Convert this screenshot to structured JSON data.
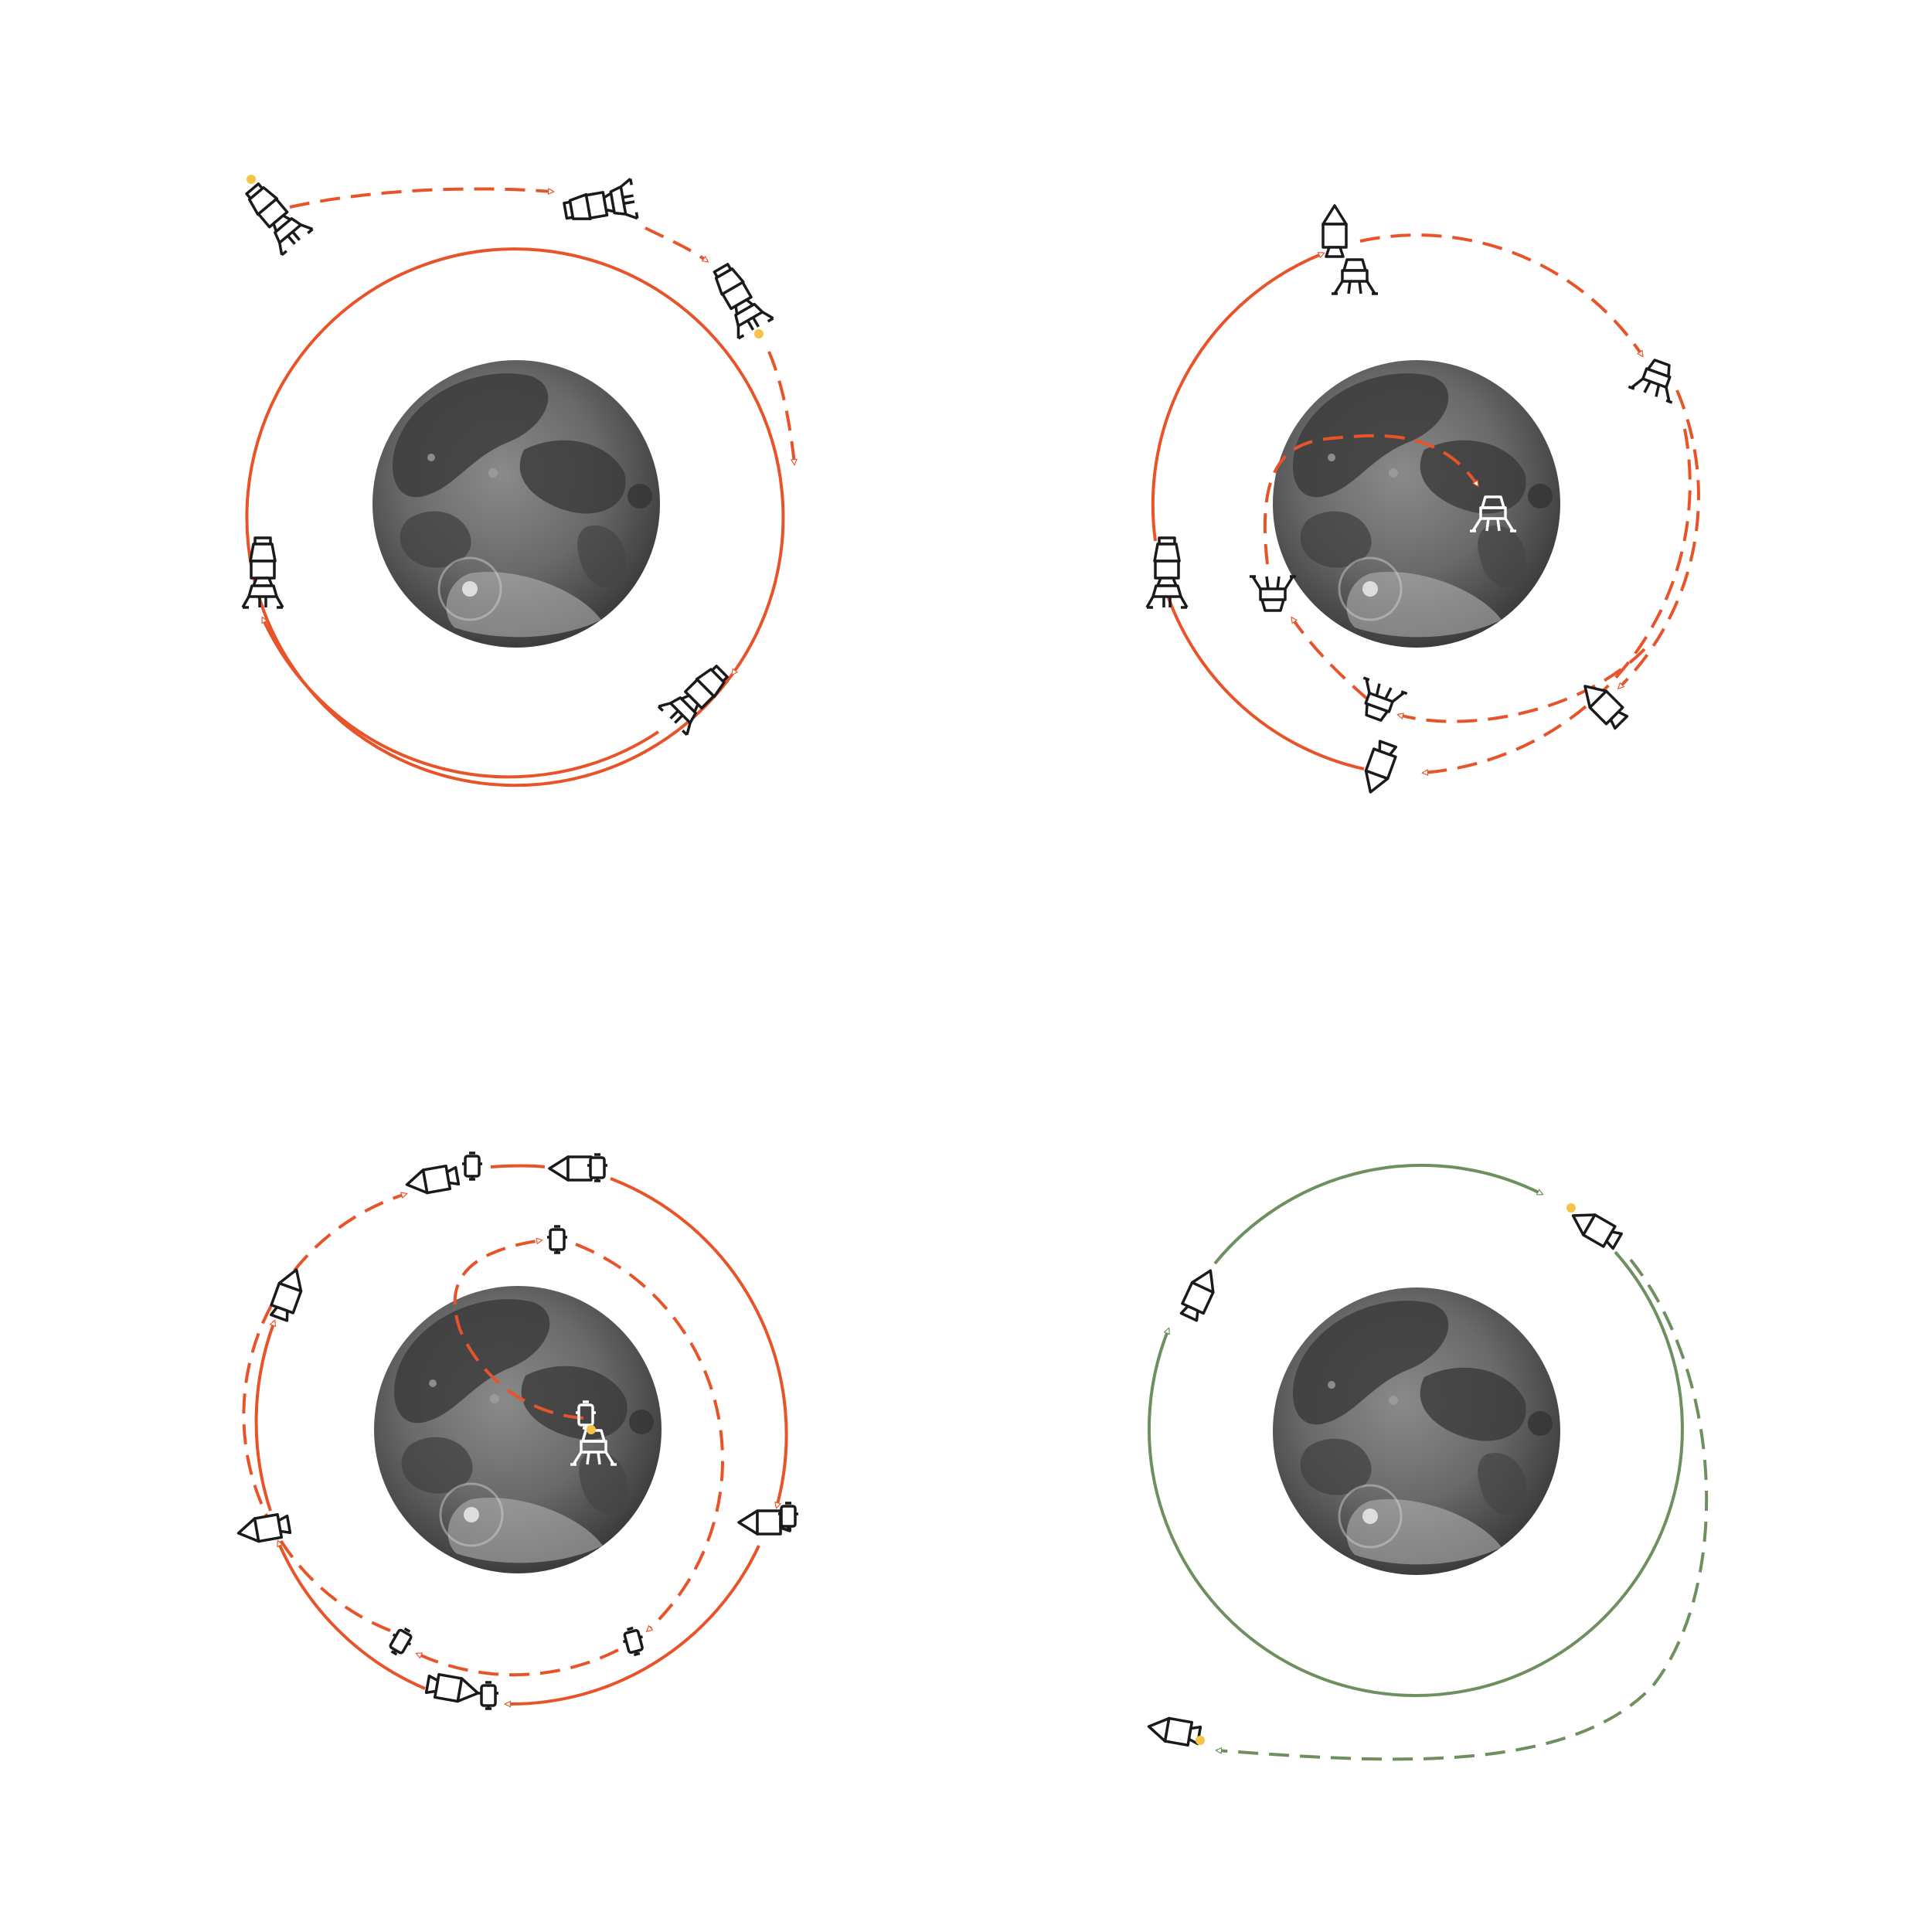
{
  "colors": {
    "orbit_primary": "#e8542a",
    "orbit_return": "#6e8f5e",
    "thruster": "#f6c445",
    "craft_outline": "#1a1a1a",
    "moon_light": "#c9c9c9",
    "moon_dark": "#4a4a4a"
  },
  "panels": [
    {
      "id": "lunar-orbit-insertion",
      "orbit_color": "orbit_primary"
    },
    {
      "id": "lander-separation-and-descent",
      "orbit_color": "orbit_primary"
    },
    {
      "id": "ascent-and-rendezvous",
      "orbit_color": "orbit_primary"
    },
    {
      "id": "trans-earth-injection",
      "orbit_color": "orbit_return"
    }
  ],
  "icons": {
    "moon": "moon-icon",
    "stack": "csm-lm-stack-icon",
    "command_module": "command-module-icon",
    "lander": "lunar-module-icon",
    "ascent_stage": "ascent-stage-icon",
    "flame": "thruster-flame-icon"
  }
}
